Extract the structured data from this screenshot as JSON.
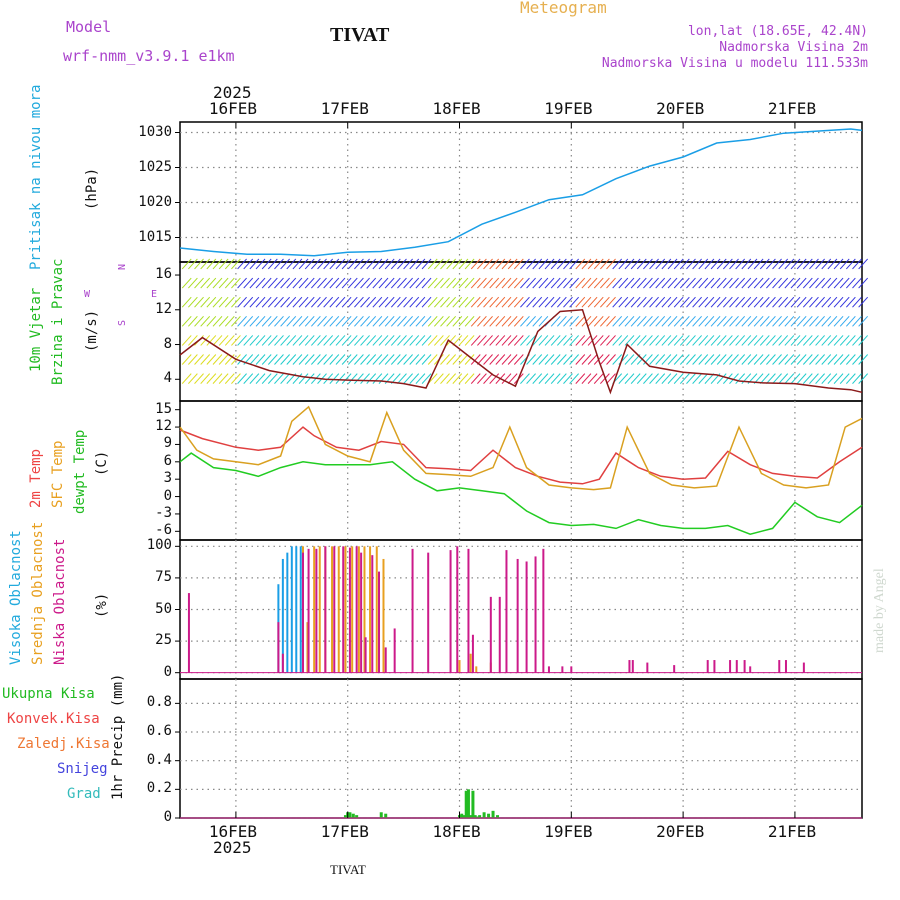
{
  "header": {
    "model_label": "Model",
    "model_name": "wrf-nmm_v3.9.1  e1km",
    "station": "TIVAT",
    "meteogram": "Meteogram",
    "lonlat": "lon,lat (18.65E, 42.4N)",
    "elev": "Nadmorska Visina 2m",
    "elev_model": "Nadmorska Visina u modelu 111.533m"
  },
  "footer": {
    "station": "TIVAT",
    "watermark": "made by Angel"
  },
  "time_axis": {
    "year": "2025",
    "ticks": [
      {
        "t": 0.5,
        "label": "16FEB"
      },
      {
        "t": 1.5,
        "label": "17FEB"
      },
      {
        "t": 2.5,
        "label": "18FEB"
      },
      {
        "t": 3.5,
        "label": "19FEB"
      },
      {
        "t": 4.5,
        "label": "20FEB"
      },
      {
        "t": 5.5,
        "label": "21FEB"
      }
    ],
    "range": [
      0,
      6.1
    ]
  },
  "colors": {
    "pressure": "#1a9ee6",
    "wind_speed": "#8b1a1a",
    "temp2m": "#e04040",
    "sfc_temp": "#d9a020",
    "dewpoint": "#22cc22",
    "high_cloud": "#1a9ee6",
    "mid_cloud": "#e8a020",
    "low_cloud": "#cc1a8a",
    "precip": "#22bb22",
    "label_cyan": "#22aadd",
    "label_green": "#22bb22",
    "label_red": "#ee4444",
    "label_orange": "#ee7733",
    "label_blue": "#4444dd",
    "label_teal": "#33bbbb",
    "label_purple": "#aa44cc",
    "label_gold": "#e6b050"
  },
  "chart_data": [
    {
      "type": "line",
      "panel": "pressure",
      "ylabel_left": "Pritisak na nivou mora",
      "ylabel_unit": "(hPa)",
      "yticks": [
        1015,
        1020,
        1025,
        1030
      ],
      "ylim": [
        1011.5,
        1031.5
      ],
      "grid": true,
      "series": [
        {
          "x": [
            0,
            0.3,
            0.6,
            0.9,
            1.2,
            1.5,
            1.8,
            2.1,
            2.4,
            2.7,
            3.0,
            3.3,
            3.6,
            3.9,
            4.2,
            4.5,
            4.8,
            5.1,
            5.4,
            5.7,
            6.0,
            6.1
          ],
          "y": [
            1013.5,
            1013.0,
            1012.6,
            1012.6,
            1012.4,
            1012.9,
            1013.0,
            1013.6,
            1014.4,
            1016.9,
            1018.6,
            1020.4,
            1021.1,
            1023.4,
            1025.2,
            1026.5,
            1028.5,
            1029.0,
            1029.9,
            1030.2,
            1030.5,
            1030.3
          ]
        }
      ]
    },
    {
      "type": "line",
      "panel": "wind",
      "ylabel_left": "10m Vjetar",
      "ylabel_left2": "Brzina i Pravac",
      "ylabel_unit": "(m/s)",
      "compass": [
        "N",
        "S",
        "W",
        "E"
      ],
      "yticks": [
        4,
        8,
        12,
        16
      ],
      "ylim": [
        1.5,
        17.5
      ],
      "series": [
        {
          "name": "speed",
          "x": [
            0,
            0.2,
            0.5,
            0.8,
            1.1,
            1.3,
            1.5,
            1.8,
            2.0,
            2.2,
            2.4,
            2.6,
            2.8,
            3.0,
            3.2,
            3.4,
            3.6,
            3.75,
            3.85,
            4.0,
            4.2,
            4.5,
            4.8,
            5.0,
            5.2,
            5.5,
            5.8,
            6.0,
            6.1
          ],
          "y": [
            6.8,
            8.8,
            6.3,
            5.0,
            4.3,
            4.0,
            3.9,
            3.8,
            3.5,
            3.0,
            8.5,
            6.5,
            4.5,
            3.2,
            9.5,
            11.8,
            12.0,
            6.0,
            2.5,
            8.0,
            5.5,
            4.8,
            4.5,
            3.8,
            3.6,
            3.5,
            3.0,
            2.8,
            2.5
          ]
        }
      ]
    },
    {
      "type": "line",
      "panel": "temperature",
      "ylabel_left": "2m Temp",
      "ylabel_left2": "SFC Temp",
      "ylabel_left3": "dewpt Temp",
      "ylabel_unit": "(C)",
      "yticks": [
        -6,
        -3,
        0,
        3,
        6,
        9,
        12,
        15
      ],
      "ylim": [
        -7.5,
        16.5
      ],
      "series": [
        {
          "name": "2m Temp",
          "x": [
            0,
            0.2,
            0.5,
            0.7,
            0.9,
            1.1,
            1.2,
            1.4,
            1.6,
            1.8,
            2.0,
            2.2,
            2.4,
            2.6,
            2.8,
            3.0,
            3.2,
            3.4,
            3.6,
            3.75,
            3.9,
            4.1,
            4.3,
            4.5,
            4.7,
            4.9,
            5.1,
            5.3,
            5.5,
            5.7,
            5.9,
            6.1
          ],
          "y": [
            11.5,
            10.0,
            8.5,
            8.0,
            8.5,
            12.0,
            10.5,
            8.5,
            8.0,
            9.5,
            9.0,
            5.0,
            4.8,
            4.5,
            8.0,
            5.0,
            3.5,
            2.5,
            2.2,
            3.0,
            7.5,
            5.0,
            3.5,
            3.0,
            3.2,
            7.8,
            5.5,
            4.0,
            3.5,
            3.2,
            6.0,
            8.5
          ]
        },
        {
          "name": "SFC Temp",
          "x": [
            0,
            0.15,
            0.3,
            0.5,
            0.7,
            0.9,
            1.0,
            1.15,
            1.3,
            1.5,
            1.7,
            1.85,
            2.0,
            2.2,
            2.4,
            2.6,
            2.8,
            2.95,
            3.1,
            3.3,
            3.5,
            3.7,
            3.85,
            4.0,
            4.2,
            4.4,
            4.6,
            4.8,
            5.0,
            5.2,
            5.4,
            5.6,
            5.8,
            5.95,
            6.1
          ],
          "y": [
            12.0,
            8.0,
            6.5,
            6.0,
            5.5,
            7.0,
            13.0,
            15.5,
            9.0,
            7.0,
            6.0,
            14.5,
            8.0,
            4.0,
            3.8,
            3.5,
            5.0,
            12.0,
            5.0,
            2.0,
            1.5,
            1.2,
            1.5,
            12.0,
            4.0,
            2.0,
            1.5,
            1.8,
            12.0,
            4.0,
            2.0,
            1.5,
            2.0,
            12.0,
            13.5
          ]
        },
        {
          "name": "dewpt Temp",
          "x": [
            0,
            0.1,
            0.3,
            0.5,
            0.7,
            0.9,
            1.1,
            1.3,
            1.5,
            1.7,
            1.9,
            2.1,
            2.3,
            2.5,
            2.7,
            2.9,
            3.1,
            3.3,
            3.5,
            3.7,
            3.9,
            4.1,
            4.3,
            4.5,
            4.7,
            4.9,
            5.1,
            5.3,
            5.5,
            5.7,
            5.9,
            6.1
          ],
          "y": [
            6.0,
            7.5,
            5.0,
            4.5,
            3.5,
            5.0,
            6.0,
            5.5,
            5.5,
            5.5,
            6.0,
            3.0,
            1.0,
            1.5,
            1.0,
            0.5,
            -2.5,
            -4.5,
            -5.0,
            -4.8,
            -5.5,
            -4.0,
            -5.0,
            -5.5,
            -5.5,
            -5.0,
            -6.5,
            -5.5,
            -1.0,
            -3.5,
            -4.5,
            -1.5
          ]
        }
      ]
    },
    {
      "type": "bar",
      "panel": "cloud",
      "ylabel_left": "Visoka Oblacnost",
      "ylabel_left2": "Srednja Oblacnost",
      "ylabel_left3": "Niska Oblacnost",
      "ylabel_unit": "(%)",
      "yticks": [
        0,
        25,
        50,
        75,
        100
      ],
      "ylim": [
        -5,
        105
      ],
      "series": [
        {
          "name": "Visoka Oblacnost",
          "x": [
            0.88,
            0.92,
            0.96,
            1.0,
            1.04,
            1.08
          ],
          "values": [
            70,
            90,
            95,
            100,
            100,
            100
          ]
        },
        {
          "name": "Srednja Oblacnost",
          "x": [
            1.1,
            1.14,
            1.2,
            1.25,
            1.3,
            1.36,
            1.42,
            1.48,
            1.54,
            1.6,
            1.65,
            1.7,
            1.76,
            1.82,
            2.5,
            2.6,
            2.65,
            2.78
          ],
          "values": [
            100,
            40,
            100,
            100,
            100,
            100,
            100,
            100,
            100,
            100,
            100,
            100,
            100,
            90,
            10,
            15,
            5,
            8
          ]
        },
        {
          "name": "Niska Oblacnost",
          "x": [
            0.08,
            0.88,
            0.92,
            1.1,
            1.15,
            1.22,
            1.3,
            1.38,
            1.46,
            1.52,
            1.58,
            1.62,
            1.66,
            1.72,
            1.78,
            1.84,
            1.92,
            2.08,
            2.22,
            2.42,
            2.48,
            2.58,
            2.62,
            2.78,
            2.86,
            2.92,
            3.02,
            3.1,
            3.18,
            3.25,
            3.3,
            3.42,
            3.5,
            4.02,
            4.05,
            4.18,
            4.42,
            4.72,
            4.78,
            4.92,
            4.98,
            5.05,
            5.1,
            5.36,
            5.42,
            5.58
          ],
          "values": [
            63,
            40,
            15,
            95,
            98,
            98,
            100,
            100,
            100,
            99,
            100,
            95,
            28,
            93,
            80,
            20,
            35,
            98,
            95,
            97,
            100,
            98,
            30,
            60,
            60,
            97,
            90,
            88,
            92,
            98,
            5,
            5,
            5,
            10,
            10,
            8,
            6,
            10,
            10,
            10,
            10,
            10,
            5,
            10,
            10,
            8
          ]
        }
      ]
    },
    {
      "type": "bar",
      "panel": "precip",
      "legend": [
        "Ukupna Kisa",
        "Konvek.Kisa",
        "Zaledj.Kisa",
        "Snijeg",
        "Grad"
      ],
      "ylabel_unit": "1hr Precip (mm)",
      "yticks": [
        0,
        0.2,
        0.4,
        0.6,
        0.8
      ],
      "ylim": [
        0,
        0.97
      ],
      "series": [
        {
          "name": "Ukupna Kisa",
          "x": [
            1.48,
            1.5,
            1.52,
            1.55,
            1.58,
            1.8,
            1.84,
            2.5,
            2.52,
            2.54,
            2.56,
            2.58,
            2.6,
            2.62,
            2.64,
            2.66,
            2.68,
            2.72,
            2.76,
            2.8,
            2.84
          ],
          "values": [
            0.02,
            0.04,
            0.04,
            0.03,
            0.02,
            0.04,
            0.03,
            0.02,
            0.03,
            0.02,
            0.19,
            0.2,
            0.02,
            0.19,
            0.02,
            0.01,
            0.02,
            0.04,
            0.03,
            0.05,
            0.02
          ]
        }
      ]
    }
  ]
}
